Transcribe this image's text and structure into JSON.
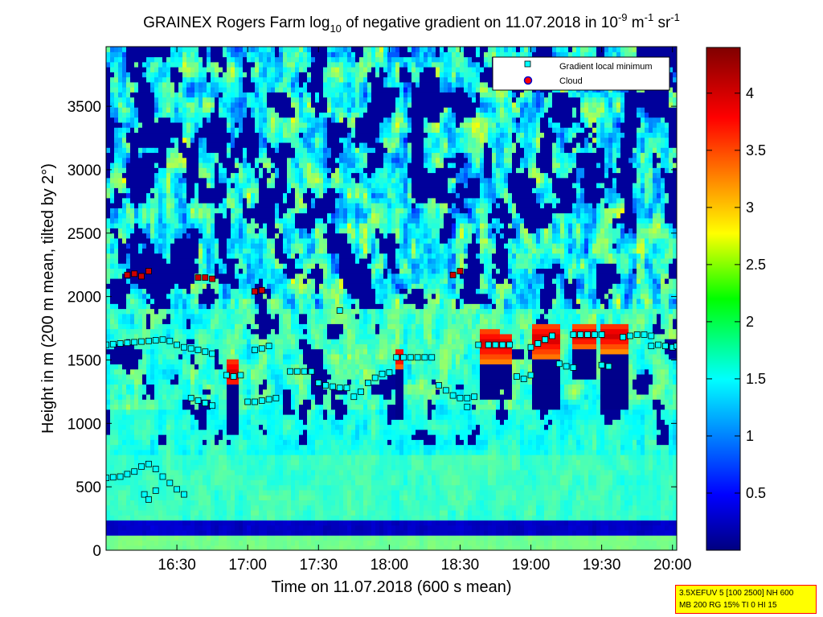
{
  "chart_data": {
    "type": "heatmap",
    "title": {
      "main": "GRAINEX Rogers Farm log",
      "sub": "10",
      "middle": " of negative gradient on 11.07.2018 in 10",
      "exp1": "-9",
      "unit1": " m",
      "exp2": "-1",
      "unit2": " sr",
      "exp3": "-1"
    },
    "xlabel": "Time on 11.07.2018 (600 s mean)",
    "ylabel": "Height in m (200 m mean, tilted by 2°)",
    "x_ticks": [
      "16:30",
      "17:00",
      "17:30",
      "18:00",
      "18:30",
      "19:00",
      "19:30",
      "20:00"
    ],
    "x_tick_hours": [
      16.5,
      17.0,
      17.5,
      18.0,
      18.5,
      19.0,
      19.5,
      20.0
    ],
    "xlim_hours": [
      16.0,
      20.03
    ],
    "y_ticks": [
      0,
      500,
      1000,
      1500,
      2000,
      2500,
      3000,
      3500
    ],
    "ylim": [
      0,
      3970
    ],
    "colorbar": {
      "ticks": [
        0.5,
        1,
        1.5,
        2,
        2.5,
        3,
        3.5,
        4
      ],
      "tick_labels": [
        "0.5",
        "1",
        "1.5",
        "2",
        "2.5",
        "3",
        "3.5",
        "4"
      ],
      "range": [
        0,
        4.4
      ],
      "colormap": "jet"
    },
    "legend": {
      "placement": "top-right",
      "entries": [
        {
          "label": "Gradient local minimum",
          "marker": "square",
          "color": "#00ffff"
        },
        {
          "label": "Cloud",
          "marker": "circle",
          "color": "#ff0000"
        }
      ]
    },
    "series": [
      {
        "kind": "gradient_local_minimum",
        "points": [
          [
            16.0,
            1620
          ],
          [
            16.05,
            1625
          ],
          [
            16.1,
            1630
          ],
          [
            16.15,
            1635
          ],
          [
            16.2,
            1640
          ],
          [
            16.25,
            1645
          ],
          [
            16.3,
            1650
          ],
          [
            16.35,
            1655
          ],
          [
            16.4,
            1660
          ],
          [
            16.45,
            1650
          ],
          [
            16.5,
            1620
          ],
          [
            16.55,
            1600
          ],
          [
            16.6,
            1590
          ],
          [
            16.65,
            1580
          ],
          [
            16.7,
            1565
          ],
          [
            16.75,
            1550
          ],
          [
            16.0,
            570
          ],
          [
            16.05,
            575
          ],
          [
            16.1,
            580
          ],
          [
            16.15,
            600
          ],
          [
            16.2,
            620
          ],
          [
            16.25,
            660
          ],
          [
            16.3,
            680
          ],
          [
            16.35,
            640
          ],
          [
            16.4,
            580
          ],
          [
            16.45,
            530
          ],
          [
            16.5,
            480
          ],
          [
            16.55,
            440
          ],
          [
            16.27,
            440
          ],
          [
            16.3,
            400
          ],
          [
            16.35,
            470
          ],
          [
            16.6,
            1200
          ],
          [
            16.65,
            1180
          ],
          [
            16.7,
            1160
          ],
          [
            16.75,
            1140
          ],
          [
            16.85,
            1380
          ],
          [
            16.9,
            1370
          ],
          [
            16.95,
            1380
          ],
          [
            17.0,
            1170
          ],
          [
            17.05,
            1170
          ],
          [
            17.1,
            1180
          ],
          [
            17.15,
            1190
          ],
          [
            17.2,
            1200
          ],
          [
            17.05,
            1580
          ],
          [
            17.1,
            1590
          ],
          [
            17.15,
            1610
          ],
          [
            17.3,
            1410
          ],
          [
            17.35,
            1410
          ],
          [
            17.4,
            1410
          ],
          [
            17.45,
            1410
          ],
          [
            17.5,
            1320
          ],
          [
            17.55,
            1300
          ],
          [
            17.6,
            1290
          ],
          [
            17.65,
            1280
          ],
          [
            17.7,
            1280
          ],
          [
            17.75,
            1210
          ],
          [
            17.8,
            1250
          ],
          [
            17.85,
            1320
          ],
          [
            17.9,
            1360
          ],
          [
            17.95,
            1390
          ],
          [
            18.0,
            1400
          ],
          [
            17.65,
            1890
          ],
          [
            18.05,
            1520
          ],
          [
            18.1,
            1520
          ],
          [
            18.15,
            1520
          ],
          [
            18.2,
            1520
          ],
          [
            18.25,
            1520
          ],
          [
            18.3,
            1520
          ],
          [
            18.35,
            1300
          ],
          [
            18.4,
            1260
          ],
          [
            18.45,
            1220
          ],
          [
            18.5,
            1200
          ],
          [
            18.55,
            1200
          ],
          [
            18.6,
            1210
          ],
          [
            18.55,
            1130
          ],
          [
            18.63,
            1620
          ],
          [
            18.7,
            1620
          ],
          [
            18.75,
            1620
          ],
          [
            18.8,
            1620
          ],
          [
            18.85,
            1620
          ],
          [
            18.9,
            1370
          ],
          [
            18.95,
            1350
          ],
          [
            19.0,
            1380
          ],
          [
            19.0,
            1600
          ],
          [
            19.05,
            1630
          ],
          [
            19.1,
            1660
          ],
          [
            19.15,
            1690
          ],
          [
            19.2,
            1470
          ],
          [
            19.25,
            1450
          ],
          [
            19.3,
            1440
          ],
          [
            19.3,
            1700
          ],
          [
            19.35,
            1700
          ],
          [
            19.4,
            1700
          ],
          [
            19.45,
            1700
          ],
          [
            19.5,
            1700
          ],
          [
            19.5,
            1460
          ],
          [
            19.55,
            1450
          ],
          [
            19.65,
            1680
          ],
          [
            19.7,
            1690
          ],
          [
            19.75,
            1700
          ],
          [
            19.8,
            1700
          ],
          [
            19.85,
            1690
          ],
          [
            19.85,
            1610
          ],
          [
            19.9,
            1620
          ],
          [
            19.95,
            1610
          ],
          [
            20.0,
            1600
          ],
          [
            20.03,
            1610
          ]
        ]
      },
      {
        "kind": "cloud",
        "points": [
          [
            16.15,
            2170
          ],
          [
            16.2,
            2180
          ],
          [
            16.25,
            2160
          ],
          [
            16.3,
            2200
          ],
          [
            16.65,
            2150
          ],
          [
            16.7,
            2150
          ],
          [
            16.75,
            2140
          ],
          [
            17.05,
            2040
          ],
          [
            17.1,
            2050
          ],
          [
            18.45,
            2170
          ],
          [
            18.5,
            2200
          ]
        ]
      }
    ]
  },
  "info_box": {
    "line1": "3.5XEFUV 5 [100 2500] NH 600",
    "line2": "MB 200 RG 15% TI 0 HI 15"
  }
}
